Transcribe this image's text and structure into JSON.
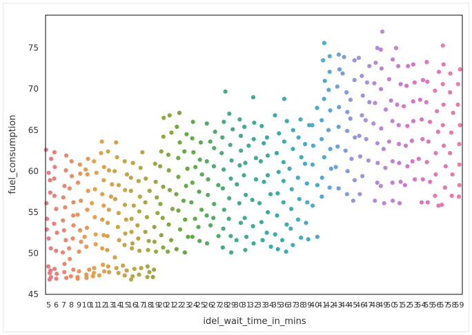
{
  "chart_data": {
    "type": "scatter",
    "title": "",
    "xlabel": "idel_wait_time_in_mins",
    "ylabel": "fuel_consumption",
    "ylim": [
      45,
      79
    ],
    "grid": false,
    "legend": "none",
    "x_tick_labels": [
      "5",
      "6",
      "7",
      "8",
      "9",
      "10",
      "11",
      "12",
      "13",
      "14",
      "15",
      "16",
      "17",
      "18",
      "19",
      "20",
      "21",
      "22",
      "23",
      "24",
      "25",
      "26",
      "27",
      "28",
      "29",
      "30",
      "31",
      "32",
      "33",
      "34",
      "35",
      "36",
      "37",
      "38",
      "39",
      "40",
      "41",
      "42",
      "43",
      "44",
      "45",
      "46",
      "47",
      "48",
      "49",
      "50",
      "51",
      "52",
      "53",
      "54",
      "55",
      "56",
      "57",
      "58",
      "59"
    ],
    "y_ticks": [
      45,
      50,
      55,
      60,
      65,
      70,
      75
    ],
    "palette_stops": [
      "#E8747A",
      "#E89A42",
      "#B2A13C",
      "#5BA834",
      "#3BA978",
      "#2FA7A8",
      "#46A4D6",
      "#A78BDA",
      "#D76BC9",
      "#EA75A0"
    ],
    "series": [
      {
        "x": 5,
        "y": [
          62.6,
          61.5,
          59.8,
          58.9,
          57.4,
          56.1,
          54.2,
          52.9,
          51.8,
          50.6,
          48.4,
          47.9,
          47.1,
          46.8,
          47.6
        ]
      },
      {
        "x": 6,
        "y": [
          62.3,
          60.5,
          59.1,
          57.0,
          55.4,
          53.6,
          52.5,
          50.3,
          48.1,
          47.5,
          46.9
        ]
      },
      {
        "x": 7,
        "y": [
          61.9,
          60.1,
          58.2,
          56.8,
          55.6,
          54.0,
          52.8,
          51.6,
          50.1,
          48.7,
          47.7,
          47.0
        ]
      },
      {
        "x": 8,
        "y": [
          61.2,
          59.4,
          57.9,
          56.2,
          54.6,
          53.4,
          51.8,
          50.6,
          49.3,
          48.0,
          47.2
        ]
      },
      {
        "x": 9,
        "y": [
          60.8,
          59.7,
          58.6,
          56.4,
          54.7,
          52.8,
          51.4,
          50.2,
          47.8,
          47.1,
          46.9
        ]
      },
      {
        "x": 10,
        "y": [
          61.5,
          60.2,
          59.6,
          57.6,
          55.3,
          53.1,
          52.0,
          50.8,
          48.0,
          47.4,
          47.0
        ]
      },
      {
        "x": 11,
        "y": [
          61.2,
          59.8,
          57.8,
          56.1,
          54.4,
          52.3,
          51.1,
          48.2,
          47.6,
          47.2
        ]
      },
      {
        "x": 12,
        "y": [
          63.6,
          62.2,
          60.5,
          58.9,
          57.2,
          55.8,
          54.1,
          52.2,
          50.6,
          48.6,
          47.8,
          47.3
        ]
      },
      {
        "x": 13,
        "y": [
          62.4,
          60.1,
          58.4,
          56.9,
          55.3,
          53.7,
          52.1,
          50.4,
          48.4,
          47.7
        ]
      },
      {
        "x": 14,
        "y": [
          63.5,
          61.7,
          60.0,
          58.3,
          56.6,
          54.9,
          53.2,
          51.6,
          49.5,
          48.2,
          47.6
        ]
      },
      {
        "x": 15,
        "y": [
          61.2,
          59.6,
          57.7,
          55.9,
          54.1,
          52.4,
          51.0,
          48.5,
          47.9,
          47.3
        ]
      },
      {
        "x": 16,
        "y": [
          61.0,
          59.2,
          57.6,
          55.8,
          54.2,
          52.6,
          51.2,
          50.6,
          48.1,
          47.2,
          46.8
        ]
      },
      {
        "x": 17,
        "y": [
          62.3,
          60.4,
          58.8,
          56.9,
          55.1,
          53.4,
          51.8,
          50.3,
          48.2,
          47.4
        ]
      },
      {
        "x": 18,
        "y": [
          59.1,
          57.6,
          56.2,
          54.4,
          52.6,
          51.5,
          50.4,
          48.4,
          47.7,
          47.1
        ]
      },
      {
        "x": 19,
        "y": [
          60.9,
          58.7,
          56.8,
          54.9,
          53.2,
          51.4,
          50.2,
          48.0,
          47.1
        ]
      },
      {
        "x": 20,
        "y": [
          66.5,
          64.2,
          62.4,
          60.6,
          58.1,
          56.0,
          54.3,
          52.2,
          50.7
        ]
      },
      {
        "x": 21,
        "y": [
          66.8,
          64.7,
          62.0,
          60.1,
          57.7,
          55.4,
          53.5,
          51.6,
          50.2
        ]
      },
      {
        "x": 22,
        "y": [
          67.1,
          65.4,
          63.5,
          61.6,
          59.3,
          57.2,
          55.2,
          52.9,
          50.5
        ]
      },
      {
        "x": 23,
        "y": [
          64.5,
          62.4,
          60.3,
          58.2,
          56.4,
          54.1,
          52.0,
          50.1
        ]
      },
      {
        "x": 24,
        "y": [
          66.0,
          64.0,
          62.3,
          60.5,
          58.6,
          56.2,
          54.2,
          52.0
        ]
      },
      {
        "x": 25,
        "y": [
          63.5,
          61.4,
          59.6,
          57.5,
          55.3,
          53.2,
          51.5
        ]
      },
      {
        "x": 26,
        "y": [
          65.8,
          63.6,
          61.2,
          59.0,
          57.1,
          54.6,
          53.4,
          51.2
        ]
      },
      {
        "x": 27,
        "y": [
          64.8,
          62.8,
          60.6,
          58.3,
          56.0,
          54.3,
          52.1
        ]
      },
      {
        "x": 28,
        "y": [
          69.7,
          66.0,
          64.1,
          62.2,
          60.2,
          57.9,
          55.3,
          53.0,
          50.7
        ]
      },
      {
        "x": 29,
        "y": [
          67.0,
          65.1,
          63.2,
          61.3,
          59.1,
          56.7,
          54.2,
          52.1,
          50.1
        ]
      },
      {
        "x": 30,
        "y": [
          66.3,
          64.3,
          62.5,
          60.7,
          58.4,
          56.1,
          53.7,
          51.6
        ]
      },
      {
        "x": 31,
        "y": [
          65.4,
          63.1,
          61.0,
          59.5,
          57.1,
          54.3,
          52.0,
          50.4
        ]
      },
      {
        "x": 32,
        "y": [
          69.0,
          65.9,
          63.9,
          61.6,
          59.0,
          56.5,
          53.3,
          51.2
        ]
      },
      {
        "x": 33,
        "y": [
          65.5,
          63.4,
          61.2,
          58.7,
          56.1,
          53.8,
          51.6
        ]
      },
      {
        "x": 34,
        "y": [
          64.1,
          61.9,
          59.5,
          57.2,
          55.0,
          52.5,
          50.8
        ]
      },
      {
        "x": 35,
        "y": [
          66.8,
          64.6,
          62.2,
          59.9,
          57.3,
          54.6,
          52.3,
          50.5
        ]
      },
      {
        "x": 36,
        "y": [
          68.8,
          66.1,
          63.6,
          61.1,
          58.8,
          56.2,
          53.5,
          51.6,
          50.2
        ]
      },
      {
        "x": 37,
        "y": [
          65.0,
          62.7,
          60.3,
          57.8,
          55.4,
          53.0,
          51.0
        ]
      },
      {
        "x": 38,
        "y": [
          66.3,
          64.1,
          61.7,
          59.2,
          56.6,
          54.1,
          51.9
        ]
      },
      {
        "x": 39,
        "y": [
          65.6,
          63.3,
          60.9,
          58.5,
          56.2,
          53.7,
          51.7
        ]
      },
      {
        "x": 40,
        "y": [
          67.7,
          65.6,
          63.1,
          60.8,
          58.3,
          55.8,
          52.0
        ]
      },
      {
        "x": 41,
        "y": [
          75.6,
          73.5,
          71.0,
          68.8,
          66.2,
          63.9,
          61.7,
          59.2,
          56.9
        ]
      },
      {
        "x": 42,
        "y": [
          74.0,
          72.1,
          69.9,
          67.4,
          65.0,
          62.7,
          60.3,
          58.0
        ]
      },
      {
        "x": 43,
        "y": [
          74.2,
          72.4,
          70.3,
          67.8,
          65.4,
          63.0,
          60.5,
          57.9
        ]
      },
      {
        "x": 44,
        "y": [
          73.9,
          71.9,
          69.6,
          67.2,
          64.9,
          62.5,
          60.0,
          57.2
        ]
      },
      {
        "x": 45,
        "y": [
          73.5,
          71.1,
          68.7,
          66.4,
          64.1,
          61.5,
          58.9,
          56.4
        ]
      },
      {
        "x": 46,
        "y": [
          73.8,
          71.6,
          69.2,
          66.8,
          64.3,
          61.8,
          59.4,
          57.2
        ]
      },
      {
        "x": 47,
        "y": [
          72.8,
          70.8,
          68.4,
          66.2,
          63.9,
          61.3
        ]
      },
      {
        "x": 48,
        "y": [
          75.0,
          73.2,
          70.7,
          68.3,
          65.8,
          63.4,
          61.0,
          58.6,
          56.4
        ]
      },
      {
        "x": 49,
        "y": [
          77.0,
          74.8,
          72.5,
          70.0,
          67.5,
          65.2,
          62.7,
          60.4,
          58.2,
          56.1
        ]
      },
      {
        "x": 50,
        "y": [
          73.6,
          71.2,
          68.6,
          66.1,
          63.6,
          61.2,
          58.6,
          56.4
        ]
      },
      {
        "x": 51,
        "y": [
          75.0,
          72.8,
          70.6,
          68.1,
          65.6,
          63.3,
          61.0,
          58.7,
          56.1
        ]
      },
      {
        "x": 52,
        "y": [
          72.8,
          70.4,
          67.9,
          65.5,
          63.1,
          60.6,
          58.3
        ]
      },
      {
        "x": 53,
        "y": [
          73.0,
          70.8,
          68.5,
          66.1,
          63.7,
          61.2,
          59.0
        ]
      },
      {
        "x": 54,
        "y": [
          71.1,
          68.7,
          66.3,
          63.9,
          61.5,
          59.0,
          56.2
        ]
      },
      {
        "x": 55,
        "y": [
          73.3,
          70.9,
          68.4,
          66.0,
          63.6,
          61.1,
          58.7,
          56.2
        ]
      },
      {
        "x": 56,
        "y": [
          72.1,
          69.8,
          67.3,
          64.8,
          62.2,
          59.6,
          57.0,
          55.8
        ]
      },
      {
        "x": 57,
        "y": [
          75.3,
          73.0,
          70.6,
          68.1,
          65.6,
          63.1,
          60.6,
          58.0,
          55.9
        ]
      },
      {
        "x": 58,
        "y": [
          71.9,
          69.6,
          67.1,
          64.7,
          62.2,
          59.6,
          57.0
        ]
      },
      {
        "x": 59,
        "y": [
          72.4,
          70.6,
          68.1,
          65.6,
          63.3,
          60.8,
          58.3,
          56.9
        ]
      }
    ]
  }
}
